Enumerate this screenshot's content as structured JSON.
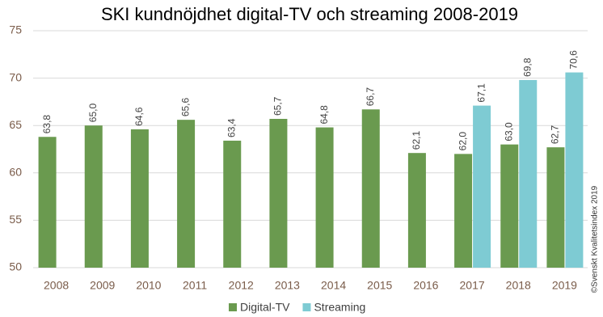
{
  "chart_data": {
    "type": "bar",
    "title": "SKI kundnöjdhet digital-TV och streaming 2008-2019",
    "categories": [
      "2008",
      "2009",
      "2010",
      "2011",
      "2012",
      "2013",
      "2014",
      "2015",
      "2016",
      "2017",
      "2018",
      "2019"
    ],
    "series": [
      {
        "name": "Digital-TV",
        "color": "#6a9a4f",
        "values": [
          63.8,
          65.0,
          64.6,
          65.6,
          63.4,
          65.7,
          64.8,
          66.7,
          62.1,
          62.0,
          63.0,
          62.7
        ],
        "value_labels": [
          "63,8",
          "65,0",
          "64,6",
          "65,6",
          "63,4",
          "65,7",
          "64,8",
          "66,7",
          "62,1",
          "62,0",
          "63,0",
          "62,7"
        ]
      },
      {
        "name": "Streaming",
        "color": "#7ecbd3",
        "values": [
          null,
          null,
          null,
          null,
          null,
          null,
          null,
          null,
          null,
          67.1,
          69.8,
          70.6
        ],
        "value_labels": [
          null,
          null,
          null,
          null,
          null,
          null,
          null,
          null,
          null,
          "67,1",
          "69,8",
          "70,6"
        ]
      }
    ],
    "ylim": [
      50,
      75
    ],
    "yticks": [
      50,
      55,
      60,
      65,
      70,
      75
    ],
    "grid": true,
    "source": "©Svenskt Kvalitetsindex 2019"
  }
}
